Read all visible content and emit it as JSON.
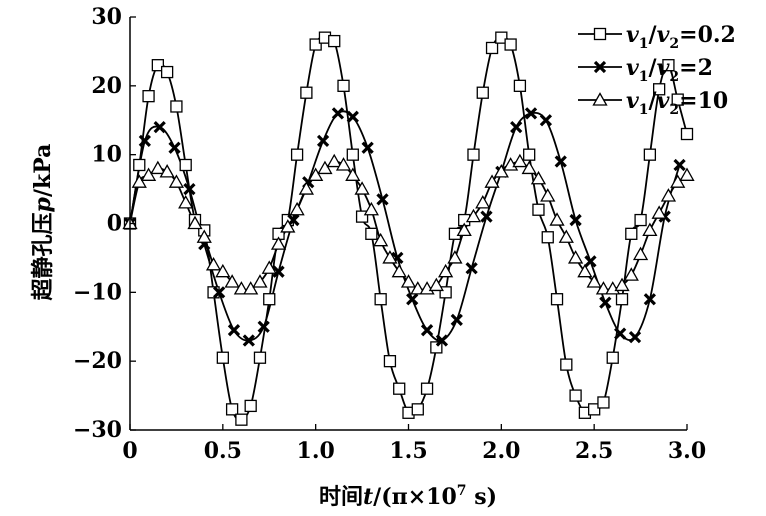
{
  "chart_data": {
    "type": "line",
    "title": "",
    "xlabel": {
      "prefix": "时间",
      "var": "t",
      "mid": "/(π×10",
      "sup": "7",
      "suffix": " s)"
    },
    "ylabel": {
      "prefix": "超静孔压",
      "var": "p",
      "suffix": "/kPa"
    },
    "xlim": [
      0,
      3.0
    ],
    "ylim": [
      -30,
      30
    ],
    "xticks": [
      {
        "value": 0,
        "label": "0"
      },
      {
        "value": 0.5,
        "label": "0.5"
      },
      {
        "value": 1.0,
        "label": "1.0"
      },
      {
        "value": 1.5,
        "label": "1.5"
      },
      {
        "value": 2.0,
        "label": "2.0"
      },
      {
        "value": 2.5,
        "label": "2.5"
      },
      {
        "value": 3.0,
        "label": "3.0"
      }
    ],
    "yticks": [
      {
        "value": 30,
        "label": "30"
      },
      {
        "value": 20,
        "label": "20"
      },
      {
        "value": 10,
        "label": "10"
      },
      {
        "value": 0,
        "label": "0"
      },
      {
        "value": -10,
        "label": "−10"
      },
      {
        "value": -20,
        "label": "−20"
      },
      {
        "value": -30,
        "label": "−30"
      }
    ],
    "grid": false,
    "legend_position": "top-right",
    "color": "#000000",
    "series": [
      {
        "name": "v1/v2=0.2",
        "legend": {
          "v": "v",
          "sub1": "1",
          "slash": "/",
          "sub2": "2",
          "value": "=0.2"
        },
        "marker": "square",
        "x": [
          0,
          0.05,
          0.1,
          0.15,
          0.2,
          0.25,
          0.3,
          0.35,
          0.4,
          0.45,
          0.5,
          0.55,
          0.6,
          0.65,
          0.7,
          0.75,
          0.8,
          0.85,
          0.9,
          0.95,
          1.0,
          1.05,
          1.1,
          1.15,
          1.2,
          1.25,
          1.3,
          1.35,
          1.4,
          1.45,
          1.5,
          1.55,
          1.6,
          1.65,
          1.7,
          1.75,
          1.8,
          1.85,
          1.9,
          1.95,
          2.0,
          2.05,
          2.1,
          2.15,
          2.2,
          2.25,
          2.3,
          2.35,
          2.4,
          2.45,
          2.5,
          2.55,
          2.6,
          2.65,
          2.7,
          2.75,
          2.8,
          2.85,
          2.9,
          2.95,
          3.0
        ],
        "y": [
          0,
          8.5,
          18.5,
          23,
          22,
          17,
          8.5,
          0.5,
          -1,
          -10,
          -19.5,
          -27,
          -28.5,
          -26.5,
          -19.5,
          -11,
          -1.5,
          0.5,
          10,
          19,
          26,
          27,
          26.5,
          20,
          10,
          1,
          -1.5,
          -11,
          -20,
          -24,
          -27.5,
          -27,
          -24,
          -18,
          -10,
          -1.5,
          0.5,
          10,
          19,
          25.5,
          27,
          26,
          20,
          10,
          2,
          -2,
          -11,
          -20.5,
          -25,
          -27.5,
          -27,
          -26,
          -19.5,
          -11,
          -1.5,
          0.5,
          10,
          19.5,
          23,
          18,
          13
        ]
      },
      {
        "name": "v1/v2=2",
        "legend": {
          "v": "v",
          "sub1": "1",
          "slash": "/",
          "sub2": "2",
          "value": "=2"
        },
        "marker": "x",
        "x": [
          0,
          0.08,
          0.16,
          0.24,
          0.32,
          0.4,
          0.48,
          0.56,
          0.64,
          0.72,
          0.8,
          0.88,
          0.96,
          1.04,
          1.12,
          1.2,
          1.28,
          1.36,
          1.44,
          1.52,
          1.6,
          1.68,
          1.76,
          1.84,
          1.92,
          2.0,
          2.08,
          2.16,
          2.24,
          2.32,
          2.4,
          2.48,
          2.56,
          2.64,
          2.72,
          2.8,
          2.88,
          2.96
        ],
        "y": [
          0,
          12,
          14,
          11,
          5,
          -3,
          -10,
          -15.5,
          -17,
          -15,
          -7,
          0.5,
          6,
          12,
          16,
          15.5,
          11,
          3.5,
          -5,
          -11,
          -15.5,
          -17,
          -14,
          -6.5,
          1,
          7.5,
          14,
          16,
          15,
          9,
          0.5,
          -5.5,
          -11.5,
          -16,
          -16.5,
          -11,
          1,
          8.5
        ]
      },
      {
        "name": "v1/v2=10",
        "legend": {
          "v": "v",
          "sub1": "1",
          "slash": "/",
          "sub2": "2",
          "value": "=10"
        },
        "marker": "triangle",
        "x": [
          0,
          0.05,
          0.1,
          0.15,
          0.2,
          0.25,
          0.3,
          0.35,
          0.4,
          0.45,
          0.5,
          0.55,
          0.6,
          0.65,
          0.7,
          0.75,
          0.8,
          0.85,
          0.9,
          0.95,
          1.0,
          1.05,
          1.1,
          1.15,
          1.2,
          1.25,
          1.3,
          1.35,
          1.4,
          1.45,
          1.5,
          1.55,
          1.6,
          1.65,
          1.7,
          1.75,
          1.8,
          1.85,
          1.9,
          1.95,
          2.0,
          2.05,
          2.1,
          2.15,
          2.2,
          2.25,
          2.3,
          2.35,
          2.4,
          2.45,
          2.5,
          2.55,
          2.6,
          2.65,
          2.7,
          2.75,
          2.8,
          2.85,
          2.9,
          2.95,
          3.0
        ],
        "y": [
          0,
          6,
          7,
          8,
          7.5,
          6,
          3,
          0,
          -2,
          -6,
          -7,
          -8.5,
          -9.5,
          -9.5,
          -8.5,
          -6.5,
          -3,
          -0.5,
          2,
          5,
          7,
          8,
          9,
          8.5,
          7,
          5,
          2,
          -2.5,
          -5,
          -7,
          -8.5,
          -9.5,
          -9.5,
          -9,
          -7,
          -5,
          -1,
          1,
          3,
          6,
          7.5,
          8.5,
          9,
          8,
          6.5,
          4,
          0.5,
          -2,
          -5,
          -7,
          -8.5,
          -9.5,
          -9.5,
          -9,
          -7.5,
          -4.5,
          -1,
          1.5,
          4,
          6,
          7
        ]
      }
    ]
  }
}
